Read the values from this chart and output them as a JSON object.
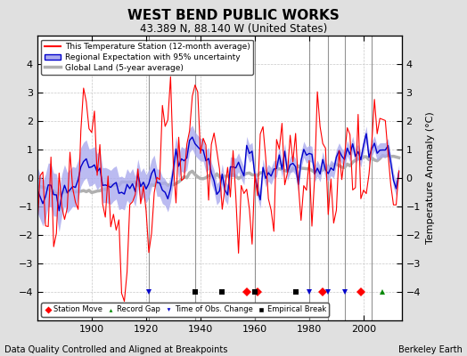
{
  "title": "WEST BEND PUBLIC WORKS",
  "subtitle": "43.389 N, 88.140 W (United States)",
  "xlabel_bottom": "Data Quality Controlled and Aligned at Breakpoints",
  "xlabel_right": "Berkeley Earth",
  "ylabel": "Temperature Anomaly (°C)",
  "xlim": [
    1880,
    2014
  ],
  "ylim": [
    -5,
    5
  ],
  "yticks": [
    -4,
    -3,
    -2,
    -1,
    0,
    1,
    2,
    3,
    4
  ],
  "xticks": [
    1900,
    1920,
    1940,
    1960,
    1980,
    2000
  ],
  "background_color": "#e0e0e0",
  "plot_bg_color": "#ffffff",
  "grid_color": "#c8c8c8",
  "station_color": "#ff0000",
  "regional_color": "#0000cc",
  "regional_fill": "#aaaaee",
  "global_color": "#b0b0b0",
  "vlines": [
    1921,
    1938,
    1960,
    1980,
    1987,
    1993,
    2003
  ],
  "station_move_years": [
    1957,
    1961,
    1985,
    1999
  ],
  "record_gap_years": [
    2007
  ],
  "obs_change_years": [
    1921,
    1938,
    1980,
    1987,
    1993
  ],
  "empirical_break_years": [
    1938,
    1948,
    1960,
    1975
  ],
  "marker_y": -4.0,
  "marker_size": 5,
  "seed": 123
}
